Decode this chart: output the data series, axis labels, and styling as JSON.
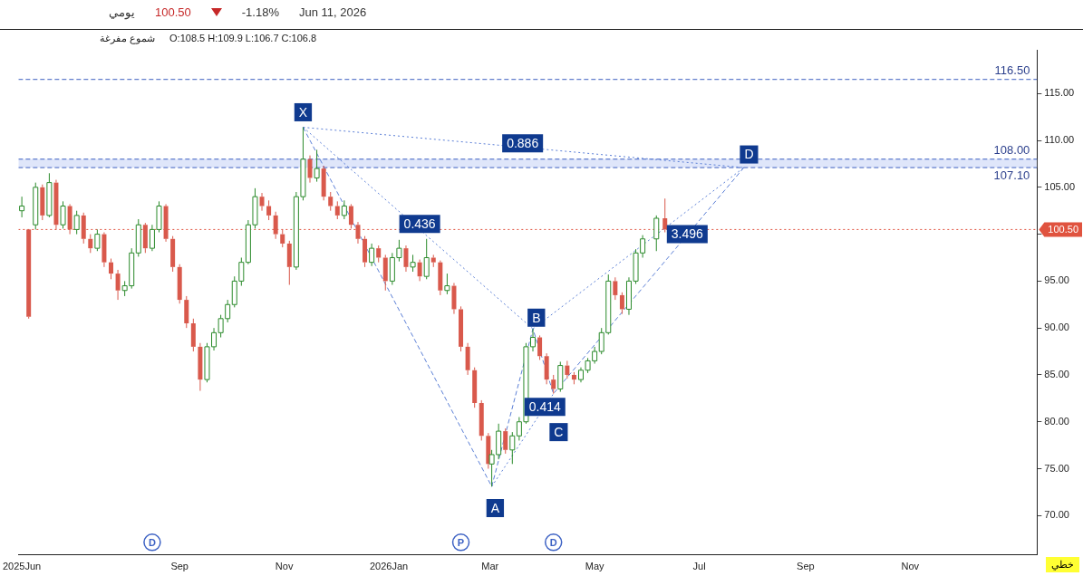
{
  "chart_data": {
    "type": "candlestick",
    "xlabel": "خطي",
    "x": [
      "2025-06-01",
      "2025-06-05",
      "2025-06-09",
      "2025-06-13",
      "2025-06-17",
      "2025-06-21",
      "2025-06-25",
      "2025-06-29",
      "2025-07-03",
      "2025-07-07",
      "2025-07-11",
      "2025-07-15",
      "2025-07-19",
      "2025-07-23",
      "2025-07-27",
      "2025-07-31",
      "2025-08-04",
      "2025-08-08",
      "2025-08-12",
      "2025-08-16",
      "2025-08-20",
      "2025-08-24",
      "2025-08-28",
      "2025-09-01",
      "2025-09-05",
      "2025-09-09",
      "2025-09-13",
      "2025-09-17",
      "2025-09-21",
      "2025-09-25",
      "2025-09-29",
      "2025-10-03",
      "2025-10-07",
      "2025-10-11",
      "2025-10-15",
      "2025-10-19",
      "2025-10-23",
      "2025-10-27",
      "2025-10-31",
      "2025-11-04",
      "2025-11-08",
      "2025-11-12",
      "2025-11-16",
      "2025-11-20",
      "2025-11-24",
      "2025-11-28",
      "2025-12-02",
      "2025-12-06",
      "2025-12-10",
      "2025-12-14",
      "2025-12-18",
      "2025-12-22",
      "2025-12-26",
      "2025-12-30",
      "2026-01-03",
      "2026-01-07",
      "2026-01-11",
      "2026-01-15",
      "2026-01-19",
      "2026-01-23",
      "2026-01-27",
      "2026-01-31",
      "2026-02-04",
      "2026-02-08",
      "2026-02-12",
      "2026-02-16",
      "2026-02-20",
      "2026-02-24",
      "2026-02-28",
      "2026-03-02",
      "2026-03-06",
      "2026-03-10",
      "2026-03-14",
      "2026-03-18",
      "2026-03-22",
      "2026-03-26",
      "2026-03-30",
      "2026-04-03",
      "2026-04-07",
      "2026-04-11",
      "2026-04-15",
      "2026-04-19",
      "2026-04-23",
      "2026-04-27",
      "2026-05-01",
      "2026-05-05",
      "2026-05-09",
      "2026-05-13",
      "2026-05-17",
      "2026-05-21",
      "2026-05-25",
      "2026-05-29",
      "2026-06-06",
      "2026-06-11"
    ],
    "ohlc": [
      [
        102.5,
        104,
        101.8,
        103
      ],
      [
        100.5,
        100.5,
        91,
        91.2
      ],
      [
        101,
        105.5,
        100.5,
        105
      ],
      [
        105,
        105.3,
        101.5,
        102
      ],
      [
        102,
        106.5,
        101.8,
        105.5
      ],
      [
        105.5,
        105.8,
        100.5,
        101
      ],
      [
        101,
        103.5,
        100.6,
        103
      ],
      [
        103,
        103.2,
        100,
        100.5
      ],
      [
        100.5,
        102.5,
        100,
        102
      ],
      [
        102,
        102.3,
        99,
        99.5
      ],
      [
        99.5,
        100,
        98,
        98.5
      ],
      [
        98.5,
        100.5,
        98.2,
        100
      ],
      [
        100,
        100.2,
        96.5,
        97
      ],
      [
        97,
        97.4,
        95.2,
        95.8
      ],
      [
        95.8,
        96.2,
        93,
        94
      ],
      [
        94,
        95,
        93.4,
        94.5
      ],
      [
        94.5,
        98.5,
        94.2,
        98
      ],
      [
        98,
        101.6,
        97.6,
        101
      ],
      [
        101,
        101.2,
        98,
        98.5
      ],
      [
        98.5,
        101,
        98.2,
        100.5
      ],
      [
        100.5,
        103.5,
        100.2,
        103
      ],
      [
        103,
        103.2,
        99.2,
        99.5
      ],
      [
        99.5,
        99.8,
        96,
        96.5
      ],
      [
        96.5,
        96.8,
        92.6,
        93
      ],
      [
        93,
        93.4,
        90,
        90.5
      ],
      [
        90.5,
        91,
        87.5,
        88
      ],
      [
        88,
        88.4,
        83.3,
        84.5
      ],
      [
        84.5,
        88.4,
        84.2,
        88
      ],
      [
        88,
        90,
        87.6,
        89.5
      ],
      [
        89.5,
        91.4,
        89,
        91
      ],
      [
        91,
        93,
        90.6,
        92.5
      ],
      [
        92.5,
        95.5,
        92.2,
        95
      ],
      [
        95,
        97.5,
        94.5,
        97
      ],
      [
        97,
        101.5,
        96.8,
        101
      ],
      [
        101,
        104.9,
        100.6,
        104
      ],
      [
        104,
        104.4,
        102.5,
        103
      ],
      [
        103,
        103.6,
        101.5,
        102
      ],
      [
        102,
        102.4,
        99.5,
        100
      ],
      [
        100,
        100.5,
        98.6,
        99
      ],
      [
        99,
        99.3,
        94.6,
        96.5
      ],
      [
        96.5,
        104.5,
        96.2,
        104
      ],
      [
        104,
        111.4,
        103.6,
        108
      ],
      [
        108,
        108.4,
        105.5,
        106
      ],
      [
        106,
        109,
        105.6,
        107
      ],
      [
        107,
        107.3,
        103.6,
        104
      ],
      [
        104,
        104.5,
        102.5,
        103
      ],
      [
        103,
        103.5,
        101.6,
        102
      ],
      [
        102,
        103.6,
        101.6,
        103
      ],
      [
        103,
        103.2,
        100.6,
        101
      ],
      [
        101,
        101.3,
        99,
        99.5
      ],
      [
        99.5,
        99.8,
        96.5,
        97
      ],
      [
        97,
        99,
        96.6,
        98.5
      ],
      [
        98.5,
        98.8,
        97,
        97.5
      ],
      [
        97.5,
        97.8,
        94,
        95
      ],
      [
        95,
        98,
        94.6,
        97.5
      ],
      [
        97.5,
        99.4,
        97.1,
        98.5
      ],
      [
        98.5,
        98.8,
        96,
        96.5
      ],
      [
        96.5,
        97.8,
        96,
        97
      ],
      [
        97,
        97.3,
        95,
        95.5
      ],
      [
        95.5,
        99.5,
        95.2,
        97.5
      ],
      [
        97.5,
        97.8,
        96.5,
        97
      ],
      [
        97,
        97.2,
        93.5,
        94
      ],
      [
        94,
        95.8,
        93.6,
        94.5
      ],
      [
        94.5,
        94.8,
        91.5,
        92
      ],
      [
        92,
        92.3,
        87.5,
        88
      ],
      [
        88,
        88.4,
        85,
        85.5
      ],
      [
        85.5,
        85.8,
        81.5,
        82
      ],
      [
        82,
        82.3,
        78,
        78.5
      ],
      [
        78.5,
        78.8,
        75,
        75.5
      ],
      [
        75.5,
        77,
        73.1,
        76.5
      ],
      [
        76.5,
        79.8,
        76,
        79
      ],
      [
        79,
        79.3,
        76.6,
        77
      ],
      [
        77,
        78.9,
        75.5,
        78.5
      ],
      [
        78.5,
        80.5,
        78,
        80
      ],
      [
        80,
        88.4,
        79.8,
        88
      ],
      [
        88,
        89.9,
        87.5,
        89
      ],
      [
        89,
        89.2,
        86.6,
        87
      ],
      [
        87,
        87.3,
        84,
        84.5
      ],
      [
        84.5,
        85,
        83,
        83.5
      ],
      [
        83.5,
        86.4,
        83.2,
        86
      ],
      [
        86,
        86.5,
        84.6,
        85
      ],
      [
        85,
        85.3,
        84,
        84.5
      ],
      [
        84.5,
        85.8,
        84.2,
        85.5
      ],
      [
        85.5,
        86.8,
        85.2,
        86.5
      ],
      [
        86.5,
        88,
        86.2,
        87.5
      ],
      [
        87.5,
        90,
        87.2,
        89.5
      ],
      [
        89.5,
        95.7,
        89.3,
        95
      ],
      [
        95,
        95.4,
        93,
        93.5
      ],
      [
        93.5,
        93.8,
        91.5,
        92
      ],
      [
        92,
        95.4,
        91.4,
        95
      ],
      [
        95,
        98.4,
        94.7,
        98
      ],
      [
        98,
        99.9,
        97.5,
        99.5
      ],
      [
        99.5,
        102,
        98.2,
        101.7
      ],
      [
        101.7,
        103.8,
        100.2,
        100.5
      ]
    ],
    "series": [
      {
        "type": "line",
        "color": "#5b7fd6",
        "line_style": "dashed",
        "x": [
          "2025-11-12",
          "2026-03-02",
          "2026-03-26",
          "2026-04-07",
          "2026-07-27"
        ],
        "values": [
          111.4,
          73.1,
          89.9,
          83,
          107.1
        ]
      },
      {
        "type": "line",
        "color": "#5b7fd6",
        "line_style": "dotted",
        "x": [
          "2025-11-12",
          "2026-03-26"
        ],
        "values": [
          111.4,
          89.9
        ]
      },
      {
        "type": "line",
        "color": "#5b7fd6",
        "line_style": "dotted",
        "x": [
          "2026-03-02",
          "2026-04-07"
        ],
        "values": [
          73.1,
          83
        ]
      },
      {
        "type": "line",
        "color": "#5b7fd6",
        "line_style": "dotted",
        "x": [
          "2026-03-26",
          "2026-07-27"
        ],
        "values": [
          89.9,
          107.1
        ]
      },
      {
        "type": "line",
        "color": "#5b7fd6",
        "line_style": "dotted",
        "x": [
          "2025-11-12",
          "2026-07-27"
        ],
        "values": [
          111.4,
          107.1
        ]
      }
    ],
    "xlim": [
      "2025-05-30",
      "2027-01-14"
    ],
    "xticks": [
      {
        "value": "2025-06-01",
        "label": "2025Jun"
      },
      {
        "value": "2025-09-01",
        "label": "Sep"
      },
      {
        "value": "2025-11-01",
        "label": "Nov"
      },
      {
        "value": "2026-01-01",
        "label": "2026Jan"
      },
      {
        "value": "2026-03-01",
        "label": "Mar"
      },
      {
        "value": "2026-05-01",
        "label": "May"
      },
      {
        "value": "2026-07-01",
        "label": "Jul"
      },
      {
        "value": "2026-09-01",
        "label": "Sep"
      },
      {
        "value": "2026-11-01",
        "label": "Nov"
      }
    ],
    "ylim": [
      65.8,
      119.6
    ],
    "yticks": [
      {
        "value": 70,
        "label": "70.00"
      },
      {
        "value": 75,
        "label": "75.00"
      },
      {
        "value": 80,
        "label": "80.00"
      },
      {
        "value": 85,
        "label": "85.00"
      },
      {
        "value": 90,
        "label": "90.00"
      },
      {
        "value": 95,
        "label": "95.00"
      },
      {
        "value": 100,
        "label": null
      },
      {
        "value": 105,
        "label": "105.00"
      },
      {
        "value": 110,
        "label": "110.00"
      },
      {
        "value": 115,
        "label": "115.00"
      }
    ],
    "ref_lines": [
      {
        "axis": "y",
        "value": 116.5,
        "label": "116.50",
        "line_style": "dashed"
      },
      {
        "axis": "y",
        "value": 108,
        "label": "108.00",
        "line_style": "dashed"
      },
      {
        "axis": "y",
        "value": 107.1,
        "label": "107.10",
        "line_style": "dashed"
      },
      {
        "axis": "y",
        "value": 100.5,
        "label": "100.50",
        "line_style": "dotted",
        "color": "#e0533f"
      }
    ],
    "bands": [
      {
        "axis": "y",
        "from": 107.1,
        "to": 108,
        "color": "#dfe6fa"
      }
    ],
    "grid": false,
    "legend": false,
    "annotations": [
      "يومي",
      "100.50",
      "-1.18%",
      "Jun 11, 2026",
      "شموع مفرغة",
      "O:108.5  H:109.9  L:106.7  C:106.8",
      {
        "text": "X",
        "x": "2025-11-12",
        "y": 113.0
      },
      {
        "text": "A",
        "x": "2026-03-04",
        "y": 70.8
      },
      {
        "text": "B",
        "x": "2026-03-28",
        "y": 91.1
      },
      {
        "text": "C",
        "x": "2026-04-10",
        "y": 78.9
      },
      {
        "text": "D",
        "x": "2026-07-30",
        "y": 108.5
      },
      {
        "text": "0.886",
        "x": "2026-03-20",
        "y": 109.7
      },
      {
        "text": "0.436",
        "x": "2026-01-19",
        "y": 101.1
      },
      {
        "text": "0.414",
        "x": "2026-04-02",
        "y": 81.6
      },
      {
        "text": "3.496",
        "x": "2026-06-24",
        "y": 100.0
      },
      {
        "text": "D",
        "x": "2025-08-16"
      },
      {
        "text": "P",
        "x": "2026-02-12"
      },
      {
        "text": "D",
        "x": "2026-04-07"
      }
    ]
  }
}
